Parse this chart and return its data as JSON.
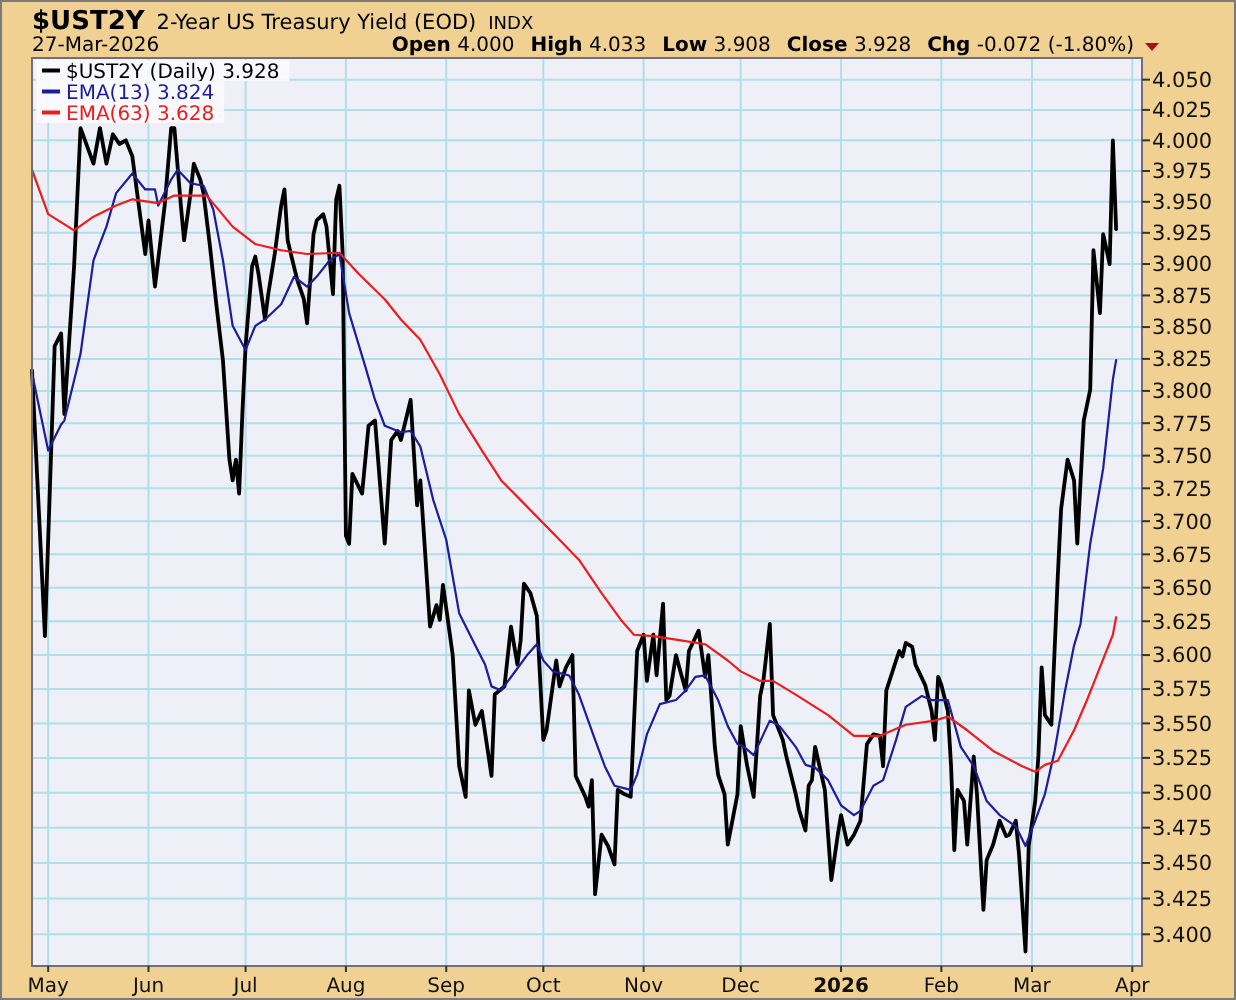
{
  "chart_data": {
    "type": "line",
    "title": "$UST2Y",
    "subtitle": "2-Year US Treasury Yield (EOD)",
    "annotations": [
      "INDX",
      "27-Mar-2026",
      "Open 4.000",
      "High 4.033",
      "Low 3.908",
      "Close 3.928",
      "Chg -0.072 (-1.80%)"
    ],
    "log": true,
    "grid": true,
    "legend": "top left",
    "xlim": [
      "2025-04-26",
      "2026-04-04"
    ],
    "xticks": [
      {
        "value": "2025-05-01",
        "label": "May"
      },
      {
        "value": "2025-06-01",
        "label": "Jun"
      },
      {
        "value": "2025-07-01",
        "label": "Jul"
      },
      {
        "value": "2025-08-01",
        "label": "Aug"
      },
      {
        "value": "2025-09-01",
        "label": "Sep"
      },
      {
        "value": "2025-10-01",
        "label": "Oct"
      },
      {
        "value": "2025-11-01",
        "label": "Nov"
      },
      {
        "value": "2025-12-01",
        "label": "Dec"
      },
      {
        "value": "2026-01-01",
        "label": "2026"
      },
      {
        "value": "2026-02-01",
        "label": "Feb"
      },
      {
        "value": "2026-03-01",
        "label": "Mar"
      },
      {
        "value": "2026-04-01",
        "label": "Apr"
      }
    ],
    "ylim": [
      3.378,
      4.068
    ],
    "yticks": [
      {
        "value": 3.4,
        "label": "3.400"
      },
      3.425,
      {
        "value": 3.45,
        "label": "3.450"
      },
      3.475,
      {
        "value": 3.5,
        "label": "3.500"
      },
      3.525,
      {
        "value": 3.55,
        "label": "3.550"
      },
      3.575,
      {
        "value": 3.6,
        "label": "3.600"
      },
      3.625,
      {
        "value": 3.65,
        "label": "3.650"
      },
      3.675,
      {
        "value": 3.7,
        "label": "3.700"
      },
      3.725,
      {
        "value": 3.75,
        "label": "3.750"
      },
      3.775,
      {
        "value": 3.8,
        "label": "3.800"
      },
      3.825,
      {
        "value": 3.85,
        "label": "3.850"
      },
      3.875,
      {
        "value": 3.9,
        "label": "3.900"
      },
      3.925,
      {
        "value": 3.95,
        "label": "3.950"
      },
      3.975,
      {
        "value": 4.0,
        "label": "4.000"
      },
      4.025,
      {
        "value": 4.05,
        "label": "4.050"
      }
    ],
    "series": [
      {
        "name": "$UST2Y (Daily) 3.928",
        "color": "#000000",
        "x": [
          "2025-04-26",
          "2025-04-30",
          "2025-05-03",
          "2025-05-05",
          "2025-05-06",
          "2025-05-09",
          "2025-05-11",
          "2025-05-15",
          "2025-05-17",
          "2025-05-19",
          "2025-05-21",
          "2025-05-23",
          "2025-05-25",
          "2025-05-27",
          "2025-05-29",
          "2025-05-31",
          "2025-06-01",
          "2025-06-03",
          "2025-06-06",
          "2025-06-08",
          "2025-06-09",
          "2025-06-11",
          "2025-06-12",
          "2025-06-14",
          "2025-06-15",
          "2025-06-17",
          "2025-06-18",
          "2025-06-20",
          "2025-06-22",
          "2025-06-24",
          "2025-06-26",
          "2025-06-27",
          "2025-06-28",
          "2025-06-29",
          "2025-06-30",
          "2025-07-01",
          "2025-07-03",
          "2025-07-04",
          "2025-07-05",
          "2025-07-07",
          "2025-07-08",
          "2025-07-10",
          "2025-07-12",
          "2025-07-13",
          "2025-07-14",
          "2025-07-15",
          "2025-07-17",
          "2025-07-19",
          "2025-07-20",
          "2025-07-22",
          "2025-07-23",
          "2025-07-25",
          "2025-07-26",
          "2025-07-28",
          "2025-07-29",
          "2025-07-30",
          "2025-07-31",
          "2025-08-01",
          "2025-08-02",
          "2025-08-03",
          "2025-08-06",
          "2025-08-08",
          "2025-08-10",
          "2025-08-13",
          "2025-08-15",
          "2025-08-17",
          "2025-08-18",
          "2025-08-21",
          "2025-08-23",
          "2025-08-24",
          "2025-08-27",
          "2025-08-29",
          "2025-08-30",
          "2025-08-31",
          "2025-09-03",
          "2025-09-05",
          "2025-09-07",
          "2025-09-08",
          "2025-09-10",
          "2025-09-12",
          "2025-09-15",
          "2025-09-16",
          "2025-09-19",
          "2025-09-21",
          "2025-09-23",
          "2025-09-24",
          "2025-09-25",
          "2025-09-27",
          "2025-09-29",
          "2025-10-01",
          "2025-10-02",
          "2025-10-05",
          "2025-10-06",
          "2025-10-08",
          "2025-10-10",
          "2025-10-11",
          "2025-10-14",
          "2025-10-15",
          "2025-10-16",
          "2025-10-17",
          "2025-10-19",
          "2025-10-21",
          "2025-10-23",
          "2025-10-24",
          "2025-10-26",
          "2025-10-28",
          "2025-10-30",
          "2025-11-01",
          "2025-11-02",
          "2025-11-04",
          "2025-11-05",
          "2025-11-07",
          "2025-11-08",
          "2025-11-09",
          "2025-11-11",
          "2025-11-12",
          "2025-11-14",
          "2025-11-15",
          "2025-11-18",
          "2025-11-20",
          "2025-11-21",
          "2025-11-23",
          "2025-11-24",
          "2025-11-26",
          "2025-11-27",
          "2025-11-30",
          "2025-12-01",
          "2025-12-03",
          "2025-12-05",
          "2025-12-07",
          "2025-12-08",
          "2025-12-10",
          "2025-12-11",
          "2025-12-14",
          "2025-12-15",
          "2025-12-18",
          "2025-12-19",
          "2025-12-21",
          "2025-12-22",
          "2025-12-23",
          "2025-12-24",
          "2025-12-27",
          "2025-12-29",
          "2025-12-31",
          "2026-01-01",
          "2026-01-03",
          "2026-01-05",
          "2026-01-07",
          "2026-01-09",
          "2026-01-11",
          "2026-01-13",
          "2026-01-14",
          "2026-01-15",
          "2026-01-18",
          "2026-01-19",
          "2026-01-20",
          "2026-01-21",
          "2026-01-23",
          "2026-01-24",
          "2026-01-27",
          "2026-01-29",
          "2026-01-30",
          "2026-01-31",
          "2026-02-01",
          "2026-02-03",
          "2026-02-04",
          "2026-02-05",
          "2026-02-06",
          "2026-02-08",
          "2026-02-09",
          "2026-02-11",
          "2026-02-12",
          "2026-02-14",
          "2026-02-15",
          "2026-02-17",
          "2026-02-19",
          "2026-02-21",
          "2026-02-22",
          "2026-02-24",
          "2026-02-25",
          "2026-02-27",
          "2026-02-28",
          "2026-03-02",
          "2026-03-03",
          "2026-03-04",
          "2026-03-05",
          "2026-03-07",
          "2026-03-09",
          "2026-03-10",
          "2026-03-12",
          "2026-03-14",
          "2026-03-15",
          "2026-03-17",
          "2026-03-19",
          "2026-03-20",
          "2026-03-22",
          "2026-03-23",
          "2026-03-25",
          "2026-03-26",
          "2026-03-27"
        ],
        "values": [
          3.816,
          3.614,
          3.835,
          3.845,
          3.782,
          3.898,
          4.01,
          3.981,
          4.01,
          3.981,
          4.005,
          3.997,
          4.0,
          3.987,
          3.947,
          3.908,
          3.935,
          3.882,
          3.947,
          4.01,
          4.01,
          3.947,
          3.919,
          3.957,
          3.981,
          3.968,
          3.957,
          3.914,
          3.867,
          3.824,
          3.747,
          3.731,
          3.747,
          3.721,
          3.782,
          3.835,
          3.898,
          3.906,
          3.892,
          3.856,
          3.876,
          3.908,
          3.947,
          3.96,
          3.919,
          3.908,
          3.887,
          3.872,
          3.853,
          3.924,
          3.935,
          3.94,
          3.93,
          3.876,
          3.952,
          3.963,
          3.908,
          3.689,
          3.683,
          3.736,
          3.721,
          3.773,
          3.777,
          3.683,
          3.762,
          3.769,
          3.762,
          3.793,
          3.712,
          3.731,
          3.621,
          3.637,
          3.626,
          3.652,
          3.6,
          3.519,
          3.497,
          3.574,
          3.549,
          3.559,
          3.512,
          3.571,
          3.577,
          3.621,
          3.593,
          3.611,
          3.653,
          3.646,
          3.629,
          3.538,
          3.545,
          3.596,
          3.577,
          3.591,
          3.6,
          3.512,
          3.497,
          3.49,
          3.509,
          3.428,
          3.47,
          3.462,
          3.449,
          3.502,
          3.499,
          3.497,
          3.603,
          3.615,
          3.581,
          3.615,
          3.585,
          3.638,
          3.567,
          3.57,
          3.6,
          3.591,
          3.574,
          3.603,
          3.618,
          3.584,
          3.6,
          3.533,
          3.513,
          3.499,
          3.463,
          3.499,
          3.548,
          3.519,
          3.497,
          3.57,
          3.581,
          3.623,
          3.556,
          3.538,
          3.527,
          3.499,
          3.488,
          3.473,
          3.505,
          3.509,
          3.533,
          3.502,
          3.438,
          3.47,
          3.484,
          3.463,
          3.47,
          3.48,
          3.535,
          3.542,
          3.541,
          3.519,
          3.574,
          3.596,
          3.603,
          3.599,
          3.609,
          3.606,
          3.593,
          3.578,
          3.559,
          3.538,
          3.584,
          3.578,
          3.559,
          3.519,
          3.459,
          3.502,
          3.494,
          3.463,
          3.526,
          3.499,
          3.417,
          3.452,
          3.463,
          3.48,
          3.469,
          3.47,
          3.48,
          3.456,
          3.388,
          3.462,
          3.494,
          3.527,
          3.591,
          3.556,
          3.549,
          3.66,
          3.709,
          3.747,
          3.731,
          3.683,
          3.777,
          3.801,
          3.911,
          3.861,
          3.924,
          3.9,
          4.0,
          3.928
        ]
      },
      {
        "name": "EMA(13) 3.824",
        "color": "#1c1c9c",
        "x": [
          "2025-04-26",
          "2025-05-01",
          "2025-05-05",
          "2025-05-06",
          "2025-05-11",
          "2025-05-15",
          "2025-05-19",
          "2025-05-22",
          "2025-05-27",
          "2025-05-31",
          "2025-06-03",
          "2025-06-04",
          "2025-06-08",
          "2025-06-10",
          "2025-06-14",
          "2025-06-18",
          "2025-06-21",
          "2025-06-24",
          "2025-06-27",
          "2025-07-01",
          "2025-07-04",
          "2025-07-07",
          "2025-07-12",
          "2025-07-16",
          "2025-07-20",
          "2025-07-23",
          "2025-07-27",
          "2025-07-30",
          "2025-08-02",
          "2025-08-07",
          "2025-08-10",
          "2025-08-13",
          "2025-08-18",
          "2025-08-21",
          "2025-08-24",
          "2025-08-28",
          "2025-09-01",
          "2025-09-05",
          "2025-09-10",
          "2025-09-13",
          "2025-09-15",
          "2025-09-18",
          "2025-09-22",
          "2025-09-26",
          "2025-09-29",
          "2025-10-01",
          "2025-10-04",
          "2025-10-09",
          "2025-10-12",
          "2025-10-17",
          "2025-10-20",
          "2025-10-23",
          "2025-10-28",
          "2025-10-30",
          "2025-11-02",
          "2025-11-06",
          "2025-11-11",
          "2025-11-14",
          "2025-11-17",
          "2025-11-20",
          "2025-11-24",
          "2025-11-27",
          "2025-11-30",
          "2025-12-02",
          "2025-12-05",
          "2025-12-08",
          "2025-12-10",
          "2025-12-13",
          "2025-12-18",
          "2025-12-21",
          "2025-12-24",
          "2025-12-28",
          "2026-01-01",
          "2026-01-05",
          "2026-01-07",
          "2026-01-11",
          "2026-01-14",
          "2026-01-18",
          "2026-01-21",
          "2026-01-26",
          "2026-01-29",
          "2026-01-31",
          "2026-02-03",
          "2026-02-07",
          "2026-02-11",
          "2026-02-15",
          "2026-02-19",
          "2026-02-24",
          "2026-02-27",
          "2026-03-02",
          "2026-03-05",
          "2026-03-08",
          "2026-03-11",
          "2026-03-14",
          "2026-03-16",
          "2026-03-19",
          "2026-03-23",
          "2026-03-26",
          "2026-03-27"
        ],
        "values": [
          3.814,
          3.754,
          3.774,
          3.777,
          3.829,
          3.903,
          3.93,
          3.957,
          3.973,
          3.96,
          3.96,
          3.947,
          3.968,
          3.976,
          3.965,
          3.963,
          3.944,
          3.903,
          3.851,
          3.832,
          3.851,
          3.856,
          3.868,
          3.89,
          3.882,
          3.89,
          3.903,
          3.908,
          3.861,
          3.819,
          3.793,
          3.773,
          3.768,
          3.769,
          3.757,
          3.716,
          3.686,
          3.631,
          3.607,
          3.593,
          3.577,
          3.574,
          3.587,
          3.6,
          3.608,
          3.596,
          3.588,
          3.585,
          3.571,
          3.538,
          3.519,
          3.505,
          3.502,
          3.513,
          3.542,
          3.564,
          3.567,
          3.574,
          3.584,
          3.585,
          3.567,
          3.548,
          3.535,
          3.533,
          3.527,
          3.542,
          3.552,
          3.548,
          3.533,
          3.52,
          3.518,
          3.509,
          3.491,
          3.484,
          3.487,
          3.505,
          3.509,
          3.538,
          3.562,
          3.57,
          3.567,
          3.567,
          3.567,
          3.533,
          3.519,
          3.494,
          3.484,
          3.476,
          3.462,
          3.48,
          3.499,
          3.53,
          3.571,
          3.607,
          3.623,
          3.683,
          3.74,
          3.809,
          3.824
        ]
      },
      {
        "name": "EMA(63) 3.628",
        "color": "#ee1c1c",
        "x": [
          "2025-04-26",
          "2025-05-01",
          "2025-05-09",
          "2025-05-15",
          "2025-05-22",
          "2025-05-27",
          "2025-06-04",
          "2025-06-09",
          "2025-06-19",
          "2025-06-27",
          "2025-07-04",
          "2025-07-12",
          "2025-07-20",
          "2025-07-30",
          "2025-08-05",
          "2025-08-13",
          "2025-08-18",
          "2025-08-24",
          "2025-08-30",
          "2025-09-05",
          "2025-09-12",
          "2025-09-18",
          "2025-09-24",
          "2025-09-30",
          "2025-10-06",
          "2025-10-12",
          "2025-10-19",
          "2025-10-25",
          "2025-10-29",
          "2025-11-04",
          "2025-11-12",
          "2025-11-20",
          "2025-11-27",
          "2025-12-01",
          "2025-12-07",
          "2025-12-11",
          "2025-12-18",
          "2025-12-28",
          "2026-01-05",
          "2026-01-13",
          "2026-01-21",
          "2026-01-30",
          "2026-02-03",
          "2026-02-09",
          "2026-02-17",
          "2026-02-26",
          "2026-03-02",
          "2026-03-05",
          "2026-03-09",
          "2026-03-14",
          "2026-03-18",
          "2026-03-22",
          "2026-03-26",
          "2026-03-27"
        ],
        "values": [
          3.976,
          3.94,
          3.927,
          3.938,
          3.947,
          3.952,
          3.949,
          3.955,
          3.955,
          3.93,
          3.916,
          3.911,
          3.908,
          3.909,
          3.892,
          3.872,
          3.856,
          3.84,
          3.813,
          3.782,
          3.754,
          3.731,
          3.716,
          3.701,
          3.686,
          3.671,
          3.646,
          3.626,
          3.615,
          3.614,
          3.611,
          3.608,
          3.596,
          3.588,
          3.581,
          3.581,
          3.571,
          3.556,
          3.541,
          3.541,
          3.549,
          3.552,
          3.555,
          3.545,
          3.53,
          3.519,
          3.515,
          3.52,
          3.523,
          3.545,
          3.567,
          3.591,
          3.615,
          3.628
        ]
      }
    ]
  }
}
